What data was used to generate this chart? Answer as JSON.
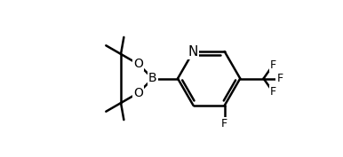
{
  "background": "#ffffff",
  "line_color": "#000000",
  "line_width": 1.8,
  "font_size": 10,
  "fig_width": 3.86,
  "fig_height": 1.77,
  "dpi": 100,
  "xlim": [
    0.0,
    10.0
  ],
  "ylim": [
    0.5,
    5.5
  ]
}
